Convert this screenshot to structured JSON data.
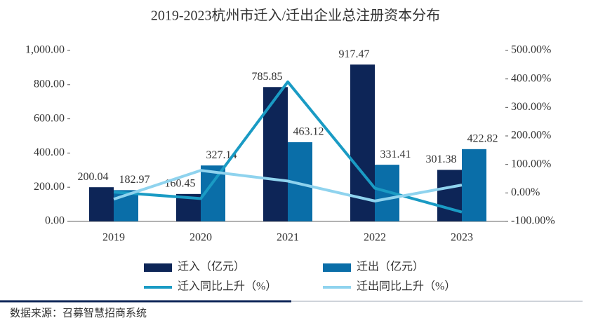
{
  "chart_data": {
    "type": "bar",
    "title": "2019-2023杭州市迁入/迁出企业总注册资本分布",
    "categories": [
      "2019",
      "2020",
      "2021",
      "2022",
      "2023"
    ],
    "series": [
      {
        "name": "迁入（亿元）",
        "type": "bar",
        "color": "#0d2557",
        "values": [
          200.04,
          160.45,
          785.85,
          917.47,
          301.38
        ]
      },
      {
        "name": "迁出（亿元）",
        "type": "bar",
        "color": "#0a6ea8",
        "values": [
          182.97,
          327.14,
          463.12,
          331.41,
          422.82
        ]
      },
      {
        "name": "迁入同比上升（%）",
        "type": "line",
        "axis": "y2",
        "color": "#1a9bc4",
        "values": [
          3,
          -19.8,
          389.8,
          16.7,
          -67.2
        ]
      },
      {
        "name": "迁出同比上升（%）",
        "type": "line",
        "axis": "y2",
        "color": "#8fd3ee",
        "values": [
          -22,
          78.8,
          41.6,
          -28.4,
          27.6
        ]
      }
    ],
    "ylim": [
      0,
      1000
    ],
    "yticks": [
      {
        "value": 0,
        "label": "0.00"
      },
      {
        "value": 200,
        "label": "200.00"
      },
      {
        "value": 400,
        "label": "400.00"
      },
      {
        "value": 600,
        "label": "600.00"
      },
      {
        "value": 800,
        "label": "800.00"
      },
      {
        "value": 1000,
        "label": "1,000.00"
      }
    ],
    "y2lim": [
      -100,
      500
    ],
    "y2ticks": [
      {
        "value": -100,
        "label": "-100.00%"
      },
      {
        "value": 0,
        "label": "0.00%"
      },
      {
        "value": 100,
        "label": "100.00%"
      },
      {
        "value": 200,
        "label": "200.00%"
      },
      {
        "value": 300,
        "label": "300.00%"
      },
      {
        "value": 400,
        "label": "400.00%"
      },
      {
        "value": 500,
        "label": "500.00%"
      }
    ],
    "source": "数据来源：召募智慧招商系统"
  }
}
